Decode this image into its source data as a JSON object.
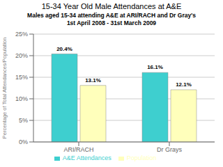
{
  "chart_data": {
    "type": "bar",
    "title": "15-34 Year Old Male Attendances at A&E",
    "subtitle": [
      "Males aged 15-34 attending A&E at ARI/RACH and Dr Gray's",
      "1st April 2008 - 31st March 2009"
    ],
    "categories": [
      "ARI/RACH",
      "Dr Grays"
    ],
    "series": [
      {
        "name": "A&E Attendances",
        "color": "#3ecfcf",
        "values": [
          20.4,
          16.1
        ],
        "value_labels": [
          "20.4%",
          "16.1%"
        ]
      },
      {
        "name": "Population",
        "color": "#ffffbb",
        "values": [
          13.1,
          12.1
        ],
        "value_labels": [
          "13.1%",
          "12.1%"
        ]
      }
    ],
    "y_label": "Percentage of Total Attendances/Population",
    "ylim": [
      0,
      25
    ],
    "yticks": [
      {
        "value": 0,
        "label": "0%"
      },
      {
        "value": 5,
        "label": "5%"
      },
      {
        "value": 10,
        "label": "10%"
      },
      {
        "value": 15,
        "label": "15%"
      },
      {
        "value": 20,
        "label": "20%"
      },
      {
        "value": 25,
        "label": "25%"
      }
    ],
    "grid": true,
    "legend": "bottom",
    "data_labels": true
  }
}
